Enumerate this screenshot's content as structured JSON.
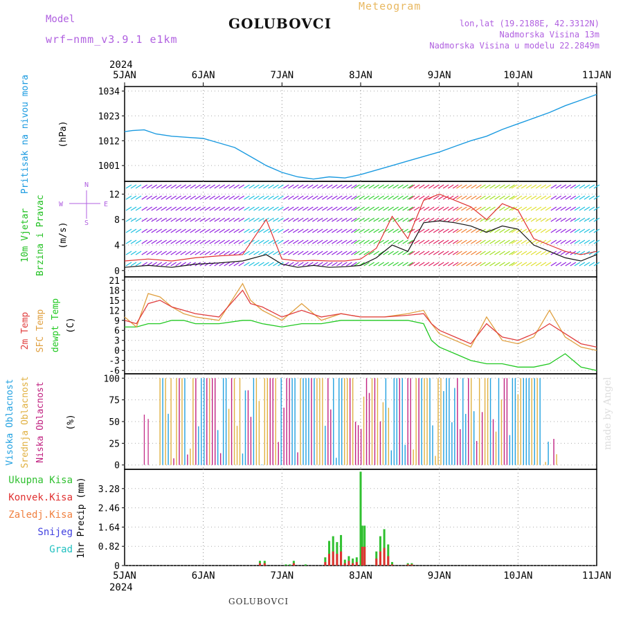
{
  "header": {
    "model_label": "Model",
    "model_name": "wrf−nmm_v3.9.1  e1km",
    "station": "GOLUBOVCI",
    "meteogram_label": "Meteogram",
    "lonlat": "lon,lat (19.2188E, 42.3312N)",
    "altitude": "Nadmorska Visina 13m",
    "altitude_model": "Nadmorska Visina u modelu 22.2849m",
    "year": "2024"
  },
  "footer": {
    "station": "GOLUBOVCI"
  },
  "credit": "made by Angel",
  "colors": {
    "pressure": "#1a9ae0",
    "wind_speed": "#111111",
    "wind_gust": "#e03030",
    "temp2m": "#e03c3c",
    "sfc_temp": "#e0a040",
    "dewpoint": "#20c820",
    "high_cloud": "#20a0e0",
    "mid_cloud": "#e0b040",
    "low_cloud": "#c02080",
    "total_precip": "#30c030",
    "conv_precip": "#e03030",
    "frozen_precip": "#f08040",
    "snow": "#4040e0",
    "hail": "#20c0c0"
  },
  "chart_data": [
    {
      "type": "line",
      "panel": "pressure",
      "ylabel_lines": [
        "Pritisak na nivou mora",
        "(hPa)"
      ],
      "x_ticks": [
        "5JAN",
        "6JAN",
        "7JAN",
        "8JAN",
        "9JAN",
        "10JAN",
        "11JAN"
      ],
      "yticks": [
        1001,
        1012,
        1023,
        1034
      ],
      "ylim": [
        994,
        1036
      ],
      "x_days": [
        0,
        0.1,
        0.25,
        0.4,
        0.6,
        0.8,
        1.0,
        1.2,
        1.4,
        1.6,
        1.8,
        2.0,
        2.2,
        2.4,
        2.6,
        2.8,
        3.0,
        3.2,
        3.4,
        3.6,
        3.8,
        4.0,
        4.2,
        4.4,
        4.6,
        4.8,
        5.0,
        5.2,
        5.4,
        5.6,
        5.8,
        6.0
      ],
      "series": [
        {
          "values": [
            1016,
            1016.5,
            1016.8,
            1015,
            1014,
            1013.5,
            1013,
            1011,
            1009,
            1005,
            1001,
            998,
            996,
            995,
            996,
            995.5,
            997,
            999,
            1001,
            1003,
            1005,
            1007,
            1009.5,
            1012,
            1014,
            1017,
            1019.5,
            1022,
            1024.5,
            1027.5,
            1030,
            1032.5
          ]
        }
      ]
    },
    {
      "type": "line",
      "panel": "wind",
      "ylabel_lines": [
        "10m Vjetar",
        "Brzina i Pravac",
        "(m/s)"
      ],
      "compass": [
        "N",
        "W",
        "E",
        "S"
      ],
      "yticks": [
        0,
        4,
        8,
        12
      ],
      "ylim": [
        -1,
        14
      ],
      "x_days": [
        0,
        0.3,
        0.6,
        0.9,
        1.2,
        1.5,
        1.8,
        2.0,
        2.2,
        2.4,
        2.6,
        2.8,
        3.0,
        3.2,
        3.4,
        3.6,
        3.8,
        4.0,
        4.2,
        4.4,
        4.6,
        4.8,
        5.0,
        5.2,
        5.4,
        5.6,
        5.8,
        6.0
      ],
      "series": [
        {
          "name_key": "wind_speed",
          "values": [
            0.5,
            0.8,
            0.5,
            1.0,
            1.2,
            1.5,
            2.5,
            1.0,
            0.5,
            0.8,
            0.5,
            0.6,
            0.8,
            2.0,
            4.0,
            3.0,
            7.5,
            7.8,
            7.5,
            7.0,
            6.0,
            7.0,
            6.5,
            4.0,
            3.0,
            2.0,
            1.5,
            2.5
          ]
        },
        {
          "name_key": "wind_gust",
          "values": [
            1.5,
            1.8,
            1.5,
            2.0,
            2.3,
            2.5,
            8.0,
            1.8,
            1.5,
            1.6,
            1.5,
            1.5,
            1.8,
            3.5,
            8.5,
            5.0,
            11.0,
            12.0,
            11.0,
            10.0,
            8.0,
            10.5,
            9.5,
            5.0,
            4.0,
            3.0,
            2.5,
            3.0
          ]
        }
      ]
    },
    {
      "type": "line",
      "panel": "temperature",
      "ylabel_lines": [
        "2m Temp",
        "SFC Temp",
        "dewpt Temp",
        "(C)"
      ],
      "yticks": [
        -6,
        -3,
        0,
        3,
        6,
        9,
        12,
        15,
        18,
        21
      ],
      "ylim": [
        -7,
        22
      ],
      "x_days": [
        0,
        0.15,
        0.3,
        0.45,
        0.6,
        0.75,
        0.9,
        1.2,
        1.5,
        1.6,
        1.75,
        2.0,
        2.25,
        2.5,
        2.75,
        3.0,
        3.3,
        3.6,
        3.8,
        3.9,
        4.0,
        4.2,
        4.4,
        4.6,
        4.8,
        5.0,
        5.2,
        5.4,
        5.6,
        5.8,
        6.0
      ],
      "series": [
        {
          "name_key": "temp2m",
          "values": [
            9,
            8,
            14,
            15,
            13,
            12,
            11,
            10,
            18,
            14,
            13,
            10,
            12,
            10,
            11,
            10,
            10,
            10.5,
            11,
            8,
            6,
            4,
            2,
            8,
            4,
            3,
            5,
            8,
            5,
            2,
            1
          ]
        },
        {
          "name_key": "sfc_temp",
          "values": [
            10,
            7,
            17,
            16,
            13,
            11,
            10,
            9,
            20,
            15,
            12,
            9,
            14,
            9,
            11,
            10,
            10,
            11,
            12,
            8,
            5,
            3,
            1,
            10,
            3,
            2,
            4,
            12,
            4,
            1,
            0
          ]
        },
        {
          "name_key": "dewpoint",
          "values": [
            7,
            7,
            8,
            8,
            9,
            9,
            8,
            8,
            9,
            9,
            8,
            7,
            8,
            8,
            9,
            9,
            9,
            9,
            8,
            3,
            1,
            -1,
            -3,
            -4,
            -4,
            -5,
            -5,
            -4,
            -1,
            -5,
            -6
          ]
        }
      ]
    },
    {
      "type": "bar",
      "panel": "cloud",
      "ylabel_lines": [
        "Visoka Oblacnost",
        "Srednja Oblacnost",
        "Niska Oblacnost",
        "(%)"
      ],
      "yticks": [
        0,
        25,
        50,
        75,
        100
      ],
      "ylim": [
        -5,
        105
      ]
    },
    {
      "type": "bar",
      "panel": "precip",
      "legend": [
        "Ukupna Kisa",
        "Konvek.Kisa",
        "Zaledj.Kisa",
        "Snijeg",
        "Grad"
      ],
      "ylabel_lines": [
        "1hr Precip (mm)"
      ],
      "yticks": [
        "0",
        "0.82",
        "1.64",
        "2.46",
        "3.28"
      ],
      "ylim": [
        0,
        4.1
      ],
      "x_days": [
        1.72,
        1.78,
        2.05,
        2.1,
        2.15,
        2.3,
        2.55,
        2.6,
        2.65,
        2.7,
        2.75,
        2.8,
        2.85,
        2.9,
        2.95,
        3.0,
        3.02,
        3.05,
        3.2,
        3.25,
        3.3,
        3.35,
        3.4,
        3.6,
        3.65
      ],
      "total": [
        0.2,
        0.2,
        0.05,
        0.05,
        0.2,
        0.05,
        0.35,
        1.05,
        1.25,
        1.0,
        1.3,
        0.25,
        0.4,
        0.3,
        0.35,
        4.0,
        1.7,
        1.7,
        0.6,
        1.25,
        1.55,
        0.9,
        0.15,
        0.1,
        0.1
      ],
      "convective": [
        0.1,
        0.1,
        0.0,
        0.0,
        0.1,
        0.0,
        0.15,
        0.5,
        0.6,
        0.5,
        0.6,
        0.1,
        0.2,
        0.1,
        0.15,
        0.0,
        0.8,
        0.8,
        0.3,
        0.6,
        0.75,
        0.4,
        0.05,
        0.05,
        0.05
      ]
    }
  ]
}
